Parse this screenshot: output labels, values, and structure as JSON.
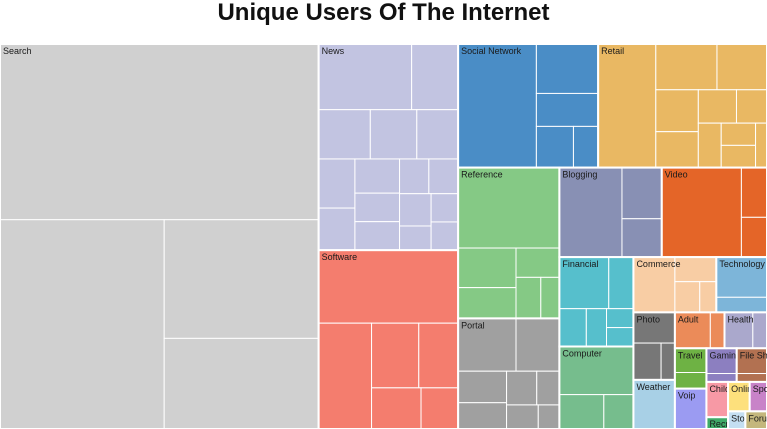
{
  "chart_data": {
    "type": "treemap",
    "title": "Unique Users Of The Internet",
    "categories": [
      {
        "name": "Search",
        "color": "#d0d0d0",
        "sub": [
          220,
          135,
          72,
          55
        ]
      },
      {
        "name": "News",
        "color": "#c2c4e1",
        "sub": [
          24,
          12,
          10,
          9,
          8,
          7,
          6,
          6,
          5,
          5,
          4,
          4,
          4,
          3,
          3,
          3
        ]
      },
      {
        "name": "Software",
        "color": "#f47d6e",
        "sub": [
          40,
          22,
          12,
          10,
          8,
          6
        ]
      },
      {
        "name": "Social Network",
        "color": "#4a8dc6",
        "sub": [
          38,
          12,
          8,
          6,
          4
        ]
      },
      {
        "name": "Retail",
        "color": "#e9b863",
        "sub": [
          28,
          11,
          9,
          7,
          6,
          5,
          4,
          4,
          3,
          3,
          2
        ]
      },
      {
        "name": "Reference",
        "color": "#85c985",
        "sub": [
          32,
          9,
          7,
          5,
          4,
          3
        ]
      },
      {
        "name": "Portal",
        "color": "#a0a0a0",
        "sub": [
          12,
          9,
          6,
          5,
          4,
          3,
          3,
          2
        ]
      },
      {
        "name": "Blogging",
        "color": "#8890b4",
        "sub": [
          22,
          8,
          6
        ]
      },
      {
        "name": "Video",
        "color": "#e46528",
        "sub": [
          28,
          5,
          4
        ]
      },
      {
        "name": "Financial",
        "color": "#56bfcc",
        "sub": [
          10,
          5,
          4,
          3,
          2,
          2
        ]
      },
      {
        "name": "Computer",
        "color": "#76bd8d",
        "sub": [
          14,
          6,
          4
        ]
      },
      {
        "name": "Commerce",
        "color": "#f8cda4",
        "sub": [
          9,
          4,
          3,
          2
        ]
      },
      {
        "name": "Technology",
        "color": "#7db5d9",
        "sub": [
          8,
          3
        ]
      },
      {
        "name": "Photo",
        "color": "#777777",
        "sub": [
          5,
          4,
          2
        ]
      },
      {
        "name": "Weather",
        "color": "#a8d0e6",
        "sub": [
          8
        ]
      },
      {
        "name": "Adult",
        "color": "#eb8b59",
        "sub": [
          5,
          2
        ]
      },
      {
        "name": "Health",
        "color": "#aaa8cc",
        "sub": [
          4,
          2
        ]
      },
      {
        "name": "Travel",
        "color": "#6eb244",
        "sub": [
          3,
          2
        ]
      },
      {
        "name": "Voip",
        "color": "#9b9bf2",
        "sub": [
          5
        ]
      },
      {
        "name": "Gaming",
        "color": "#8c7fc0",
        "sub": [
          3,
          1
        ]
      },
      {
        "name": "File Sharing",
        "color": "#b27151",
        "sub": [
          3,
          1
        ]
      },
      {
        "name": "Children",
        "color": "#f799a5",
        "sub": [
          3
        ]
      },
      {
        "name": "Recruitment",
        "color": "#3faa68",
        "sub": [
          1
        ]
      },
      {
        "name": "Online Dating",
        "color": "#fde07c",
        "sub": [
          2.5
        ]
      },
      {
        "name": "Sport",
        "color": "#c883c8",
        "sub": [
          2
        ]
      },
      {
        "name": "Storage",
        "color": "#c4dff2",
        "sub": [
          1.2
        ]
      },
      {
        "name": "Forum",
        "color": "#c4b77d",
        "sub": [
          1.5
        ]
      }
    ]
  }
}
